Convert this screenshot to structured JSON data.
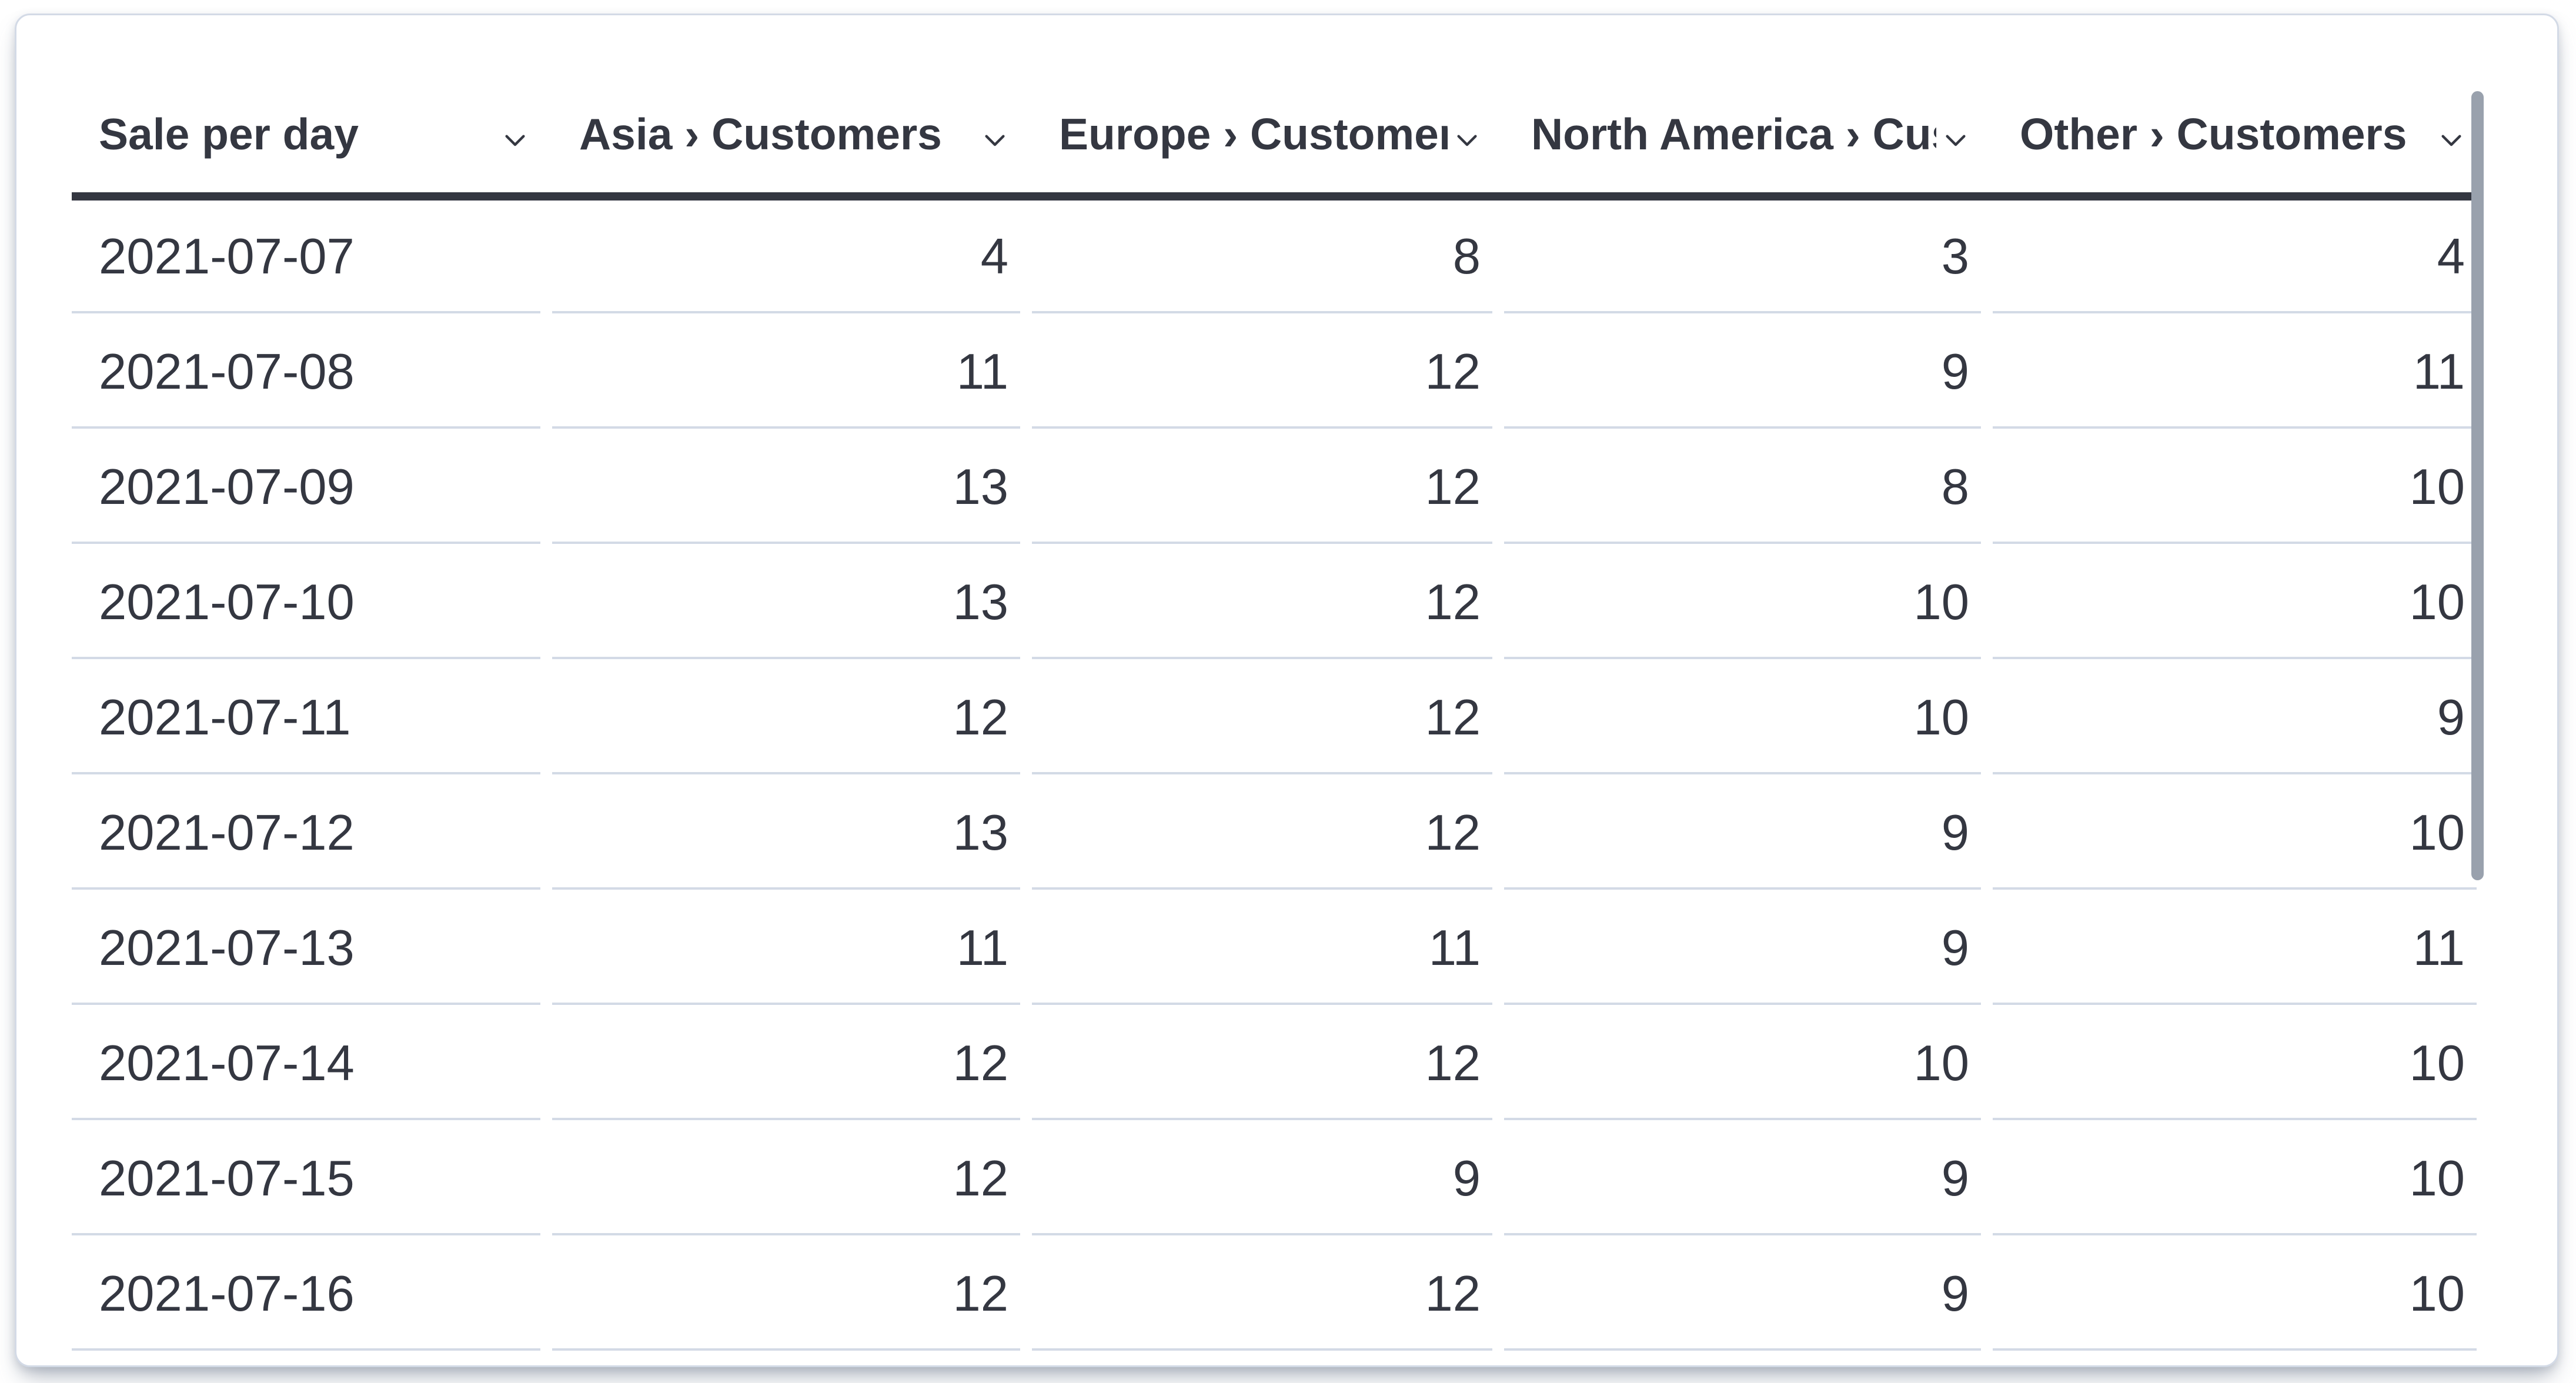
{
  "panel": {
    "type": "datatable"
  },
  "table": {
    "columns": [
      {
        "id": "date",
        "label": "Sale per day",
        "align": "left"
      },
      {
        "id": "asia",
        "label": "Asia › Customers",
        "align": "right"
      },
      {
        "id": "europe",
        "label": "Europe › Customers",
        "align": "right"
      },
      {
        "id": "north_america",
        "label": "North America › Customers",
        "align": "right"
      },
      {
        "id": "other",
        "label": "Other › Customers",
        "align": "right"
      }
    ],
    "rows": [
      [
        "2021-07-07",
        "4",
        "8",
        "3",
        "4"
      ],
      [
        "2021-07-08",
        "11",
        "12",
        "9",
        "11"
      ],
      [
        "2021-07-09",
        "13",
        "12",
        "8",
        "10"
      ],
      [
        "2021-07-10",
        "13",
        "12",
        "10",
        "10"
      ],
      [
        "2021-07-11",
        "12",
        "12",
        "10",
        "9"
      ],
      [
        "2021-07-12",
        "13",
        "12",
        "9",
        "10"
      ],
      [
        "2021-07-13",
        "11",
        "11",
        "9",
        "11"
      ],
      [
        "2021-07-14",
        "12",
        "12",
        "10",
        "10"
      ],
      [
        "2021-07-15",
        "12",
        "9",
        "9",
        "10"
      ],
      [
        "2021-07-16",
        "12",
        "12",
        "9",
        "10"
      ]
    ]
  },
  "chart_data": {
    "type": "table",
    "title": "Sale per day",
    "categories": [
      "2021-07-07",
      "2021-07-08",
      "2021-07-09",
      "2021-07-10",
      "2021-07-11",
      "2021-07-12",
      "2021-07-13",
      "2021-07-14",
      "2021-07-15",
      "2021-07-16"
    ],
    "series": [
      {
        "name": "Asia › Customers",
        "values": [
          4,
          11,
          13,
          13,
          12,
          13,
          11,
          12,
          12,
          12
        ]
      },
      {
        "name": "Europe › Customers",
        "values": [
          8,
          12,
          12,
          12,
          12,
          12,
          11,
          12,
          9,
          12
        ]
      },
      {
        "name": "North America › Customers",
        "values": [
          3,
          9,
          8,
          10,
          10,
          9,
          9,
          10,
          9,
          9
        ]
      },
      {
        "name": "Other › Customers",
        "values": [
          4,
          11,
          10,
          10,
          9,
          10,
          11,
          10,
          10,
          10
        ]
      }
    ]
  },
  "icons": {
    "column_chevron": "chevron-down"
  },
  "colors": {
    "text": "#343741",
    "header_underline": "#343741",
    "row_divider": "#d3dae6",
    "card_border": "#d3dae6",
    "card_background": "#ffffff",
    "scrollbar_thumb": "#99a1ad"
  }
}
